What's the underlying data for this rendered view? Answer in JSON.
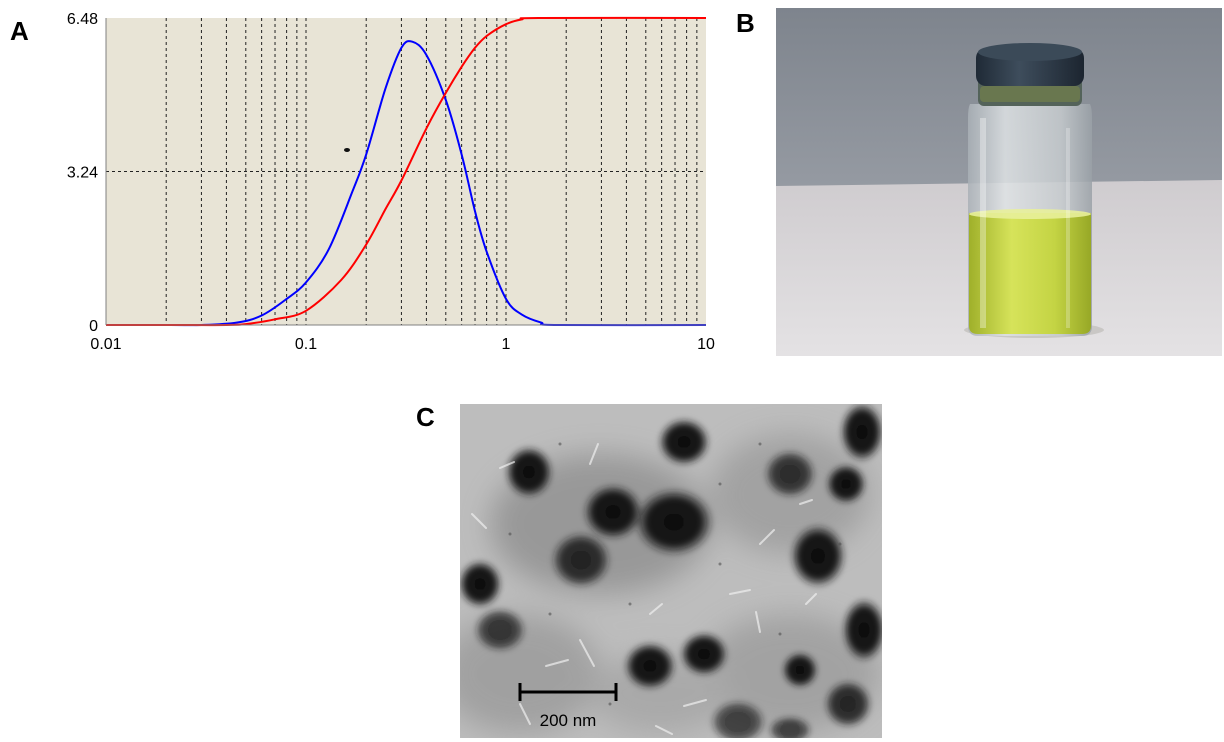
{
  "panels": {
    "a_label": "A",
    "b_label": "B",
    "c_label": "C"
  },
  "chart_data": {
    "type": "line",
    "title": "",
    "xlabel": "",
    "ylabel": "",
    "xscale": "log",
    "xlim": [
      0.01,
      10
    ],
    "ylim": [
      0,
      6.48
    ],
    "x_ticks": [
      0.01,
      0.1,
      1,
      10
    ],
    "x_tick_labels": [
      "0.01",
      "0.1",
      "1",
      "10"
    ],
    "y_ticks": [
      0,
      3.24,
      6.48
    ],
    "y_tick_labels": [
      "0",
      "3.24",
      "6.48"
    ],
    "grid": true,
    "background": "#e8e4d6",
    "series": [
      {
        "color": "#0000ff",
        "x": [
          0.01,
          0.021,
          0.03,
          0.045,
          0.06,
          0.08,
          0.1,
          0.13,
          0.17,
          0.2,
          0.25,
          0.3,
          0.34,
          0.4,
          0.5,
          0.6,
          0.7,
          0.8,
          1.0,
          1.2,
          1.5,
          1.8,
          10
        ],
        "y": [
          0,
          0,
          0,
          0.05,
          0.2,
          0.55,
          0.9,
          1.6,
          2.8,
          3.6,
          5.0,
          5.85,
          5.98,
          5.7,
          4.75,
          3.6,
          2.4,
          1.55,
          0.55,
          0.22,
          0.05,
          0,
          0
        ]
      },
      {
        "color": "#ff0000",
        "x": [
          0.01,
          0.021,
          0.04,
          0.05,
          0.07,
          0.1,
          0.15,
          0.2,
          0.25,
          0.3,
          0.4,
          0.5,
          0.6,
          0.7,
          0.8,
          1.0,
          1.2,
          1.45,
          10
        ],
        "y": [
          0,
          0,
          0,
          0.02,
          0.12,
          0.3,
          0.95,
          1.7,
          2.45,
          3.05,
          4.15,
          4.9,
          5.45,
          5.85,
          6.1,
          6.35,
          6.45,
          6.48,
          6.48
        ]
      }
    ]
  },
  "scale_bar": {
    "label": "200 nm"
  },
  "colors": {
    "plot_background": "#e8e4d6",
    "blue_series": "#0000ff",
    "red_series": "#ff0000",
    "liquid": "#c9d845",
    "backdrop": "#8a8f98",
    "table": "#d9d6d8"
  }
}
